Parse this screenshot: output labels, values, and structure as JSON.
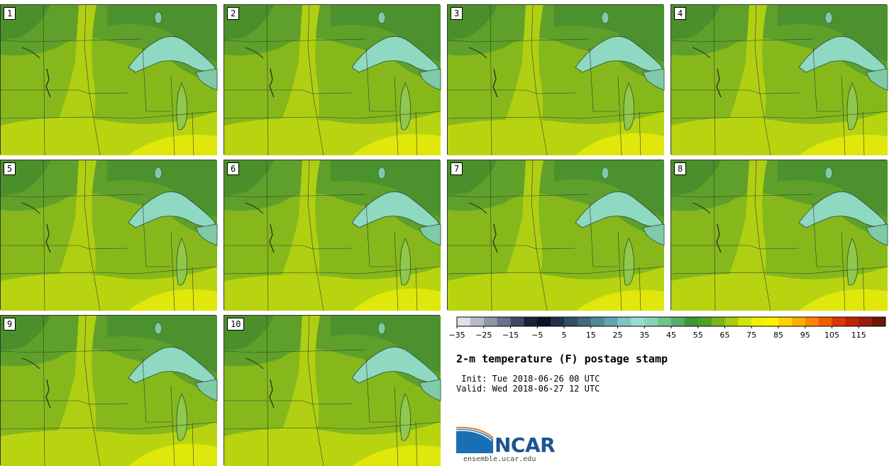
{
  "panels": [
    "1",
    "2",
    "3",
    "4",
    "5",
    "6",
    "7",
    "8",
    "9",
    "10"
  ],
  "title": "2-m temperature (F) postage stamp",
  "init": " Init: Tue 2018-06-26 00 UTC",
  "valid": "Valid: Wed 2018-06-27 12 UTC",
  "colorbar": {
    "ticks": [
      "−35",
      "−25",
      "−15",
      "−5",
      "5",
      "15",
      "25",
      "35",
      "45",
      "55",
      "65",
      "75",
      "85",
      "95",
      "105",
      "115"
    ],
    "colors": [
      "#dde0e6",
      "#b6bcc7",
      "#8f97a6",
      "#69728a",
      "#3e4a63",
      "#1b2238",
      "#0b1220",
      "#1f3446",
      "#2f5163",
      "#3f6b7c",
      "#4f8795",
      "#63a5ae",
      "#7ec5c5",
      "#98ddd2",
      "#87d6b1",
      "#6dc48f",
      "#54ae6a",
      "#409536",
      "#4e9f26",
      "#78b51a",
      "#a8cc10",
      "#d4e20a",
      "#f1f007",
      "#fff200",
      "#ffd400",
      "#ffae00",
      "#ff8500",
      "#f25c00",
      "#d93800",
      "#bd2404",
      "#9c1a0c",
      "#6e1508"
    ]
  },
  "logo": {
    "name": "NCAR",
    "url": "ensemble.ucar.edu"
  }
}
